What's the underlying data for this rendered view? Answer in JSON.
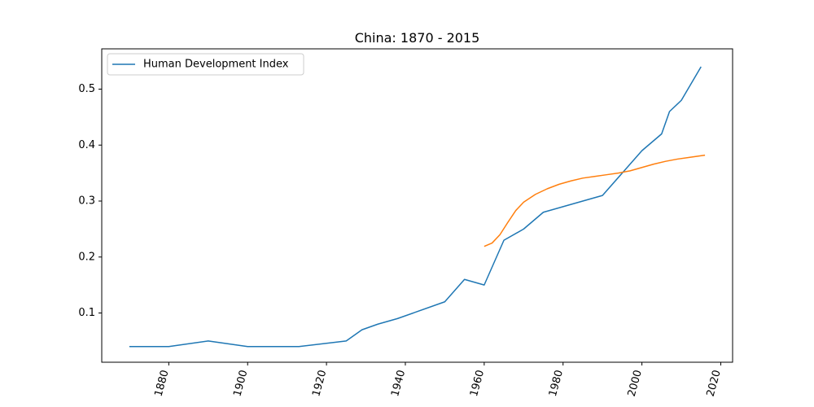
{
  "chart_data": {
    "type": "line",
    "title": "China: 1870 - 2015",
    "xlabel": "",
    "ylabel": "",
    "xlim": [
      1863,
      2023
    ],
    "ylim": [
      0.012,
      0.572
    ],
    "x_ticks": [
      1880,
      1900,
      1920,
      1940,
      1960,
      1980,
      2000,
      2020
    ],
    "x_tick_labels": [
      "1880",
      "1900",
      "1920",
      "1940",
      "1960",
      "1980",
      "2000",
      "2020"
    ],
    "y_ticks": [
      0.1,
      0.2,
      0.3,
      0.4,
      0.5
    ],
    "y_tick_labels": [
      "0.1",
      "0.2",
      "0.3",
      "0.4",
      "0.5"
    ],
    "x_tick_rotation": 75,
    "grid": false,
    "legend_position": "top-left",
    "series": [
      {
        "name": "Human Development Index",
        "color": "#1f77b4",
        "show_in_legend": true,
        "points": [
          [
            1870,
            0.04
          ],
          [
            1880,
            0.04
          ],
          [
            1890,
            0.05
          ],
          [
            1900,
            0.04
          ],
          [
            1913,
            0.04
          ],
          [
            1925,
            0.05
          ],
          [
            1929,
            0.07
          ],
          [
            1933,
            0.08
          ],
          [
            1938,
            0.09
          ],
          [
            1950,
            0.12
          ],
          [
            1955,
            0.16
          ],
          [
            1960,
            0.15
          ],
          [
            1965,
            0.23
          ],
          [
            1970,
            0.25
          ],
          [
            1975,
            0.28
          ],
          [
            1980,
            0.29
          ],
          [
            1990,
            0.31
          ],
          [
            1995,
            0.35
          ],
          [
            2000,
            0.39
          ],
          [
            2005,
            0.42
          ],
          [
            2007,
            0.46
          ],
          [
            2010,
            0.48
          ],
          [
            2015,
            0.54
          ]
        ]
      },
      {
        "name": "",
        "color": "#ff7f0e",
        "show_in_legend": false,
        "points": [
          [
            1960,
            0.219
          ],
          [
            1962,
            0.225
          ],
          [
            1964,
            0.24
          ],
          [
            1966,
            0.262
          ],
          [
            1968,
            0.283
          ],
          [
            1970,
            0.298
          ],
          [
            1973,
            0.312
          ],
          [
            1976,
            0.322
          ],
          [
            1979,
            0.33
          ],
          [
            1982,
            0.336
          ],
          [
            1985,
            0.341
          ],
          [
            1988,
            0.344
          ],
          [
            1991,
            0.347
          ],
          [
            1994,
            0.35
          ],
          [
            1997,
            0.354
          ],
          [
            2000,
            0.36
          ],
          [
            2003,
            0.366
          ],
          [
            2006,
            0.371
          ],
          [
            2009,
            0.375
          ],
          [
            2012,
            0.378
          ],
          [
            2016,
            0.382
          ]
        ]
      }
    ]
  }
}
